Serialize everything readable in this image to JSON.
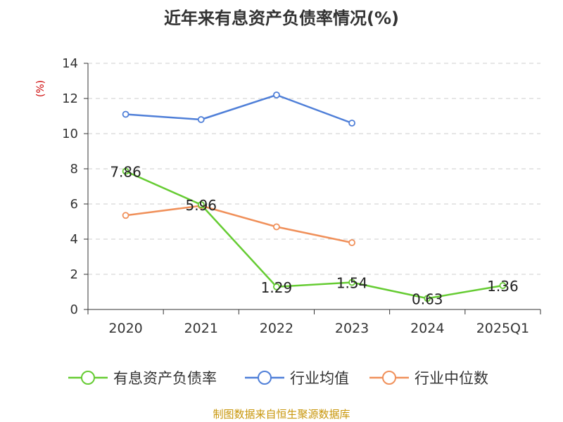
{
  "chart_data": {
    "type": "line",
    "title": "近年来有息资产负债率情况(%)",
    "ylabel": "(%)",
    "xlabel": "",
    "ylim": [
      0,
      14
    ],
    "yticks": [
      0,
      2,
      4,
      6,
      8,
      10,
      12,
      14
    ],
    "categories": [
      "2020",
      "2021",
      "2022",
      "2023",
      "2024",
      "2025Q1"
    ],
    "grid": true,
    "legend_position": "bottom",
    "series": [
      {
        "name": "有息资产负债率",
        "color": "#66cc33",
        "values": [
          7.86,
          5.96,
          1.29,
          1.54,
          0.63,
          1.36
        ],
        "labels": [
          "7.86",
          "5.96",
          "1.29",
          "1.54",
          "0.63",
          "1.36"
        ]
      },
      {
        "name": "行业均值",
        "color": "#4f7fd8",
        "values": [
          11.1,
          10.8,
          12.2,
          10.6,
          null,
          null
        ]
      },
      {
        "name": "行业中位数",
        "color": "#f0905a",
        "values": [
          5.35,
          5.9,
          4.7,
          3.8,
          null,
          null
        ]
      }
    ]
  },
  "footer": {
    "source": "制图数据来自恒生聚源数据库",
    "source_color": "#c8960a"
  },
  "colors": {
    "axis": "#333333",
    "grid": "#cccccc",
    "ylabel": "#cc0000"
  }
}
